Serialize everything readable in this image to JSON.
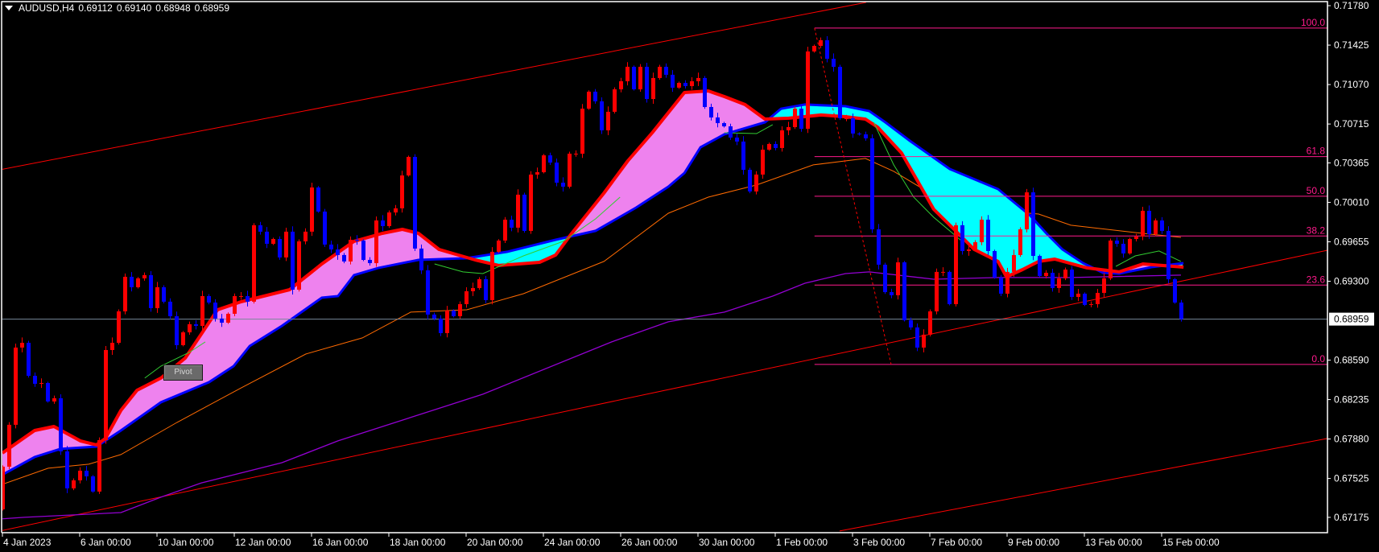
{
  "header": {
    "symbol": "AUDUSD,H4",
    "open": "0.69112",
    "high": "0.69140",
    "low": "0.68948",
    "close": "0.68959"
  },
  "pivot_button": {
    "label": "Pivot"
  },
  "colors": {
    "background": "#000000",
    "axis": "#ffffff",
    "bull_candle": "#ff0000",
    "bear_candle": "#0000ff",
    "ma_fast": "#ff0000",
    "ma_slow": "#0000ff",
    "cloud_up": "#ee82ee",
    "cloud_down": "#00ffff",
    "ma_orange": "#ff6a00",
    "ma_green": "#32cd32",
    "ma_purple": "#9400d3",
    "channel": "#ff0000",
    "fibo": "#ff1a8c",
    "price_line": "#778899"
  },
  "chart_data": {
    "type": "candlestick",
    "symbol": "AUDUSD",
    "timeframe": "H4",
    "ylim": [
      0.67037,
      0.71831
    ],
    "first_open": 0.67247,
    "closes": [
      0.67631,
      0.68008,
      0.68703,
      0.68746,
      0.68449,
      0.68377,
      0.68384,
      0.68218,
      0.68247,
      0.67769,
      0.67436,
      0.67508,
      0.67595,
      0.67544,
      0.67407,
      0.6787,
      0.68681,
      0.68746,
      0.69029,
      0.6934,
      0.69246,
      0.69326,
      0.69355,
      0.69058,
      0.69246,
      0.69116,
      0.68985,
      0.68725,
      0.6884,
      0.68913,
      0.68898,
      0.69166,
      0.69108,
      0.68964,
      0.68927,
      0.69007,
      0.69166,
      0.69166,
      0.69116,
      0.69804,
      0.69746,
      0.69637,
      0.6968,
      0.69514,
      0.69746,
      0.69224,
      0.69659,
      0.69746,
      0.70144,
      0.69927,
      0.6963,
      0.69586,
      0.69536,
      0.69478,
      0.69673,
      0.69666,
      0.69492,
      0.69463,
      0.69847,
      0.69796,
      0.69919,
      0.69956,
      0.70252,
      0.70419,
      0.69594,
      0.69398,
      0.69,
      0.68964,
      0.68833,
      0.69036,
      0.68985,
      0.69094,
      0.6921,
      0.69239,
      0.69318,
      0.6913,
      0.69565,
      0.69666,
      0.69854,
      0.69782,
      0.70079,
      0.69753,
      0.7026,
      0.70281,
      0.70433,
      0.70368,
      0.70187,
      0.70151,
      0.70448,
      0.70448,
      0.70853,
      0.71006,
      0.70919,
      0.70658,
      0.70825,
      0.71027,
      0.711,
      0.7123,
      0.71027,
      0.7123,
      0.7094,
      0.71129,
      0.7123,
      0.71158,
      0.71042,
      0.71085,
      0.71056,
      0.711,
      0.71129,
      0.70868,
      0.70774,
      0.70723,
      0.70694,
      0.70593,
      0.70557,
      0.70303,
      0.70108,
      0.7026,
      0.70484,
      0.70535,
      0.70499,
      0.70658,
      0.70687,
      0.70853,
      0.70672,
      0.71368,
      0.71418,
      0.71469,
      0.71302,
      0.7123,
      0.70767,
      0.70767,
      0.70629,
      0.70622,
      0.70586,
      0.69767,
      0.69449,
      0.69202,
      0.69174,
      0.6947,
      0.68949,
      0.68884,
      0.68703,
      0.68819,
      0.69029,
      0.69384,
      0.69384,
      0.69094,
      0.69804,
      0.69572,
      0.69586,
      0.69651,
      0.69854,
      0.69572,
      0.69333,
      0.69188,
      0.69384,
      0.69536,
      0.69767,
      0.701,
      0.69528,
      0.69347,
      0.69376,
      0.69239,
      0.69326,
      0.69405,
      0.69159,
      0.69188,
      0.69087,
      0.69094,
      0.69195,
      0.69326,
      0.69666,
      0.69637,
      0.6955,
      0.6968,
      0.69702,
      0.69934,
      0.69724,
      0.69847,
      0.69753,
      0.69318,
      0.69108,
      0.68959
    ],
    "current_price": "0.68959",
    "x_tick_every_bars": 12,
    "x_tick_labels": [
      "4 Jan 2023",
      "6 Jan 00:00",
      "10 Jan 00:00",
      "12 Jan 00:00",
      "16 Jan 00:00",
      "18 Jan 00:00",
      "20 Jan 00:00",
      "24 Jan 00:00",
      "26 Jan 00:00",
      "30 Jan 00:00",
      "1 Feb 00:00",
      "3 Feb 00:00",
      "7 Feb 00:00",
      "9 Feb 00:00",
      "13 Feb 00:00",
      "15 Feb 00:00"
    ],
    "y_tick_labels": [
      "0.71780",
      "0.71425",
      "0.71070",
      "0.70715",
      "0.70365",
      "0.70010",
      "0.69655",
      "0.69300",
      "0.68590",
      "0.68235",
      "0.67880",
      "0.67525",
      "0.67175"
    ],
    "indicators": {
      "ma_fast": [
        [
          0,
          0.67754
        ],
        [
          5,
          0.67957
        ],
        [
          8,
          0.67993
        ],
        [
          12.1,
          0.67863
        ],
        [
          14.6,
          0.67827
        ],
        [
          16,
          0.67885
        ],
        [
          18.4,
          0.68138
        ],
        [
          20.9,
          0.68319
        ],
        [
          24.6,
          0.68428
        ],
        [
          28.4,
          0.68609
        ],
        [
          30.9,
          0.68826
        ],
        [
          33.4,
          0.69043
        ],
        [
          37.1,
          0.69116
        ],
        [
          44.6,
          0.69224
        ],
        [
          49.6,
          0.69456
        ],
        [
          54.6,
          0.69659
        ],
        [
          59,
          0.69731
        ],
        [
          62.1,
          0.69767
        ],
        [
          64.6,
          0.69731
        ],
        [
          67.8,
          0.69586
        ],
        [
          73.4,
          0.69492
        ],
        [
          77.1,
          0.69442
        ],
        [
          83.4,
          0.6947
        ],
        [
          85.9,
          0.69536
        ],
        [
          88.4,
          0.69731
        ],
        [
          93.4,
          0.70093
        ],
        [
          97.1,
          0.70383
        ],
        [
          100.9,
          0.70636
        ],
        [
          103.4,
          0.70817
        ],
        [
          105.9,
          0.70998
        ],
        [
          109.6,
          0.71013
        ],
        [
          112.1,
          0.70962
        ],
        [
          115.3,
          0.7089
        ],
        [
          118.4,
          0.70759
        ],
        [
          122.1,
          0.70767
        ],
        [
          127.1,
          0.70796
        ],
        [
          130.9,
          0.70781
        ],
        [
          134,
          0.70759
        ],
        [
          135.9,
          0.70687
        ],
        [
          139.6,
          0.70455
        ],
        [
          142.1,
          0.70202
        ],
        [
          144.6,
          0.69948
        ],
        [
          148.4,
          0.69731
        ],
        [
          150.9,
          0.69586
        ],
        [
          154.6,
          0.69478
        ],
        [
          155.9,
          0.6934
        ],
        [
          158.4,
          0.69405
        ],
        [
          160.9,
          0.69478
        ],
        [
          163.4,
          0.69499
        ],
        [
          168.4,
          0.6942
        ],
        [
          173.4,
          0.69384
        ],
        [
          177.1,
          0.69456
        ],
        [
          183.4,
          0.69427
        ]
      ],
      "ma_slow": [
        [
          0,
          0.67559
        ],
        [
          5,
          0.67718
        ],
        [
          9,
          0.67791
        ],
        [
          14.6,
          0.67812
        ],
        [
          18.4,
          0.67957
        ],
        [
          24.6,
          0.6821
        ],
        [
          32.1,
          0.68392
        ],
        [
          35.9,
          0.68536
        ],
        [
          38.4,
          0.68717
        ],
        [
          43.4,
          0.68898
        ],
        [
          49.6,
          0.69152
        ],
        [
          52.1,
          0.69166
        ],
        [
          54.6,
          0.69355
        ],
        [
          58.4,
          0.6942
        ],
        [
          64.6,
          0.69492
        ],
        [
          72.1,
          0.69507
        ],
        [
          78.4,
          0.69565
        ],
        [
          85.9,
          0.69673
        ],
        [
          92.1,
          0.69753
        ],
        [
          98.4,
          0.69963
        ],
        [
          103.4,
          0.70151
        ],
        [
          105.9,
          0.70274
        ],
        [
          108.4,
          0.70506
        ],
        [
          112.1,
          0.70622
        ],
        [
          118.4,
          0.7073
        ],
        [
          120.9,
          0.70853
        ],
        [
          124.6,
          0.7089
        ],
        [
          130.9,
          0.70875
        ],
        [
          134.6,
          0.70832
        ],
        [
          137.1,
          0.7073
        ],
        [
          140.9,
          0.70564
        ],
        [
          147.1,
          0.7031
        ],
        [
          154.6,
          0.70129
        ],
        [
          159.6,
          0.6989
        ],
        [
          162.1,
          0.69731
        ],
        [
          164.6,
          0.69586
        ],
        [
          167.8,
          0.69463
        ],
        [
          170.9,
          0.69376
        ],
        [
          173.4,
          0.69369
        ],
        [
          178.4,
          0.69427
        ],
        [
          183.4,
          0.69463
        ]
      ],
      "ma_orange": [
        [
          0,
          0.67472
        ],
        [
          7.1,
          0.67617
        ],
        [
          13.4,
          0.67653
        ],
        [
          18.4,
          0.6774
        ],
        [
          27.1,
          0.68029
        ],
        [
          37.1,
          0.68341
        ],
        [
          47.1,
          0.68645
        ],
        [
          55.9,
          0.6879
        ],
        [
          63.4,
          0.69022
        ],
        [
          72.1,
          0.69043
        ],
        [
          80.9,
          0.69188
        ],
        [
          93.4,
          0.69478
        ],
        [
          103.4,
          0.69912
        ],
        [
          109.6,
          0.70057
        ],
        [
          117.1,
          0.70166
        ],
        [
          125.9,
          0.70347
        ],
        [
          134,
          0.70405
        ],
        [
          138.4,
          0.70289
        ],
        [
          143.4,
          0.70115
        ],
        [
          149.6,
          0.69963
        ],
        [
          160.9,
          0.69905
        ],
        [
          165.9,
          0.69804
        ],
        [
          175.9,
          0.69738
        ],
        [
          183,
          0.69695
        ]
      ],
      "ma_green_segments": [
        [
          [
            22.1,
            0.68428
          ],
          [
            24.6,
            0.68536
          ],
          [
            29,
            0.68659
          ],
          [
            31.5,
            0.68754
          ]
        ],
        [
          [
            67.1,
            0.69456
          ],
          [
            71.5,
            0.69384
          ],
          [
            74.6,
            0.69369
          ],
          [
            80.9,
            0.69528
          ],
          [
            87.1,
            0.69659
          ],
          [
            92.1,
            0.69861
          ],
          [
            95.9,
            0.70057
          ]
        ],
        [
          [
            112.1,
            0.70636
          ],
          [
            117.1,
            0.70629
          ],
          [
            119.6,
            0.70709
          ]
        ],
        [
          [
            135.3,
            0.7073
          ],
          [
            138.4,
            0.70347
          ],
          [
            141.5,
            0.70057
          ],
          [
            144.6,
            0.69876
          ],
          [
            147.1,
            0.69753
          ],
          [
            149,
            0.69659
          ]
        ],
        [
          [
            172.9,
            0.69434
          ],
          [
            175.9,
            0.69528
          ],
          [
            179.6,
            0.69572
          ],
          [
            183,
            0.69478
          ]
        ]
      ],
      "ma_purple": [
        [
          -0.4,
          0.6716
        ],
        [
          3.4,
          0.67175
        ],
        [
          18.4,
          0.67218
        ],
        [
          24.6,
          0.67356
        ],
        [
          30.9,
          0.67485
        ],
        [
          43.4,
          0.67667
        ],
        [
          52.1,
          0.67863
        ],
        [
          74.6,
          0.68283
        ],
        [
          94.6,
          0.68754
        ],
        [
          103.4,
          0.68935
        ],
        [
          112.1,
          0.69022
        ],
        [
          119.6,
          0.69166
        ],
        [
          124.6,
          0.69282
        ],
        [
          130.9,
          0.69369
        ],
        [
          134.6,
          0.69384
        ],
        [
          144.6,
          0.69318
        ],
        [
          154.6,
          0.69333
        ],
        [
          165.9,
          0.69333
        ],
        [
          183,
          0.69355
        ]
      ]
    },
    "channel_lines": [
      [
        [
          -0.4,
          0.70303
        ],
        [
          134.1,
          0.71809
        ]
      ],
      [
        [
          -0.4,
          0.67052
        ],
        [
          205.75,
          0.69579
        ]
      ],
      [
        [
          130,
          0.67052
        ],
        [
          205.75,
          0.67885
        ]
      ]
    ],
    "fibonacci": {
      "high": 0.71578,
      "low": 0.68551,
      "start_index": 126.1,
      "end_index": 138,
      "levels": [
        {
          "value": 100.0,
          "label": "100.0"
        },
        {
          "value": 61.8,
          "label": "61.8"
        },
        {
          "value": 50.0,
          "label": "50.0"
        },
        {
          "value": 38.2,
          "label": "38.2"
        },
        {
          "value": 23.6,
          "label": "23.6"
        },
        {
          "value": 0.0,
          "label": "0.0"
        }
      ]
    }
  }
}
